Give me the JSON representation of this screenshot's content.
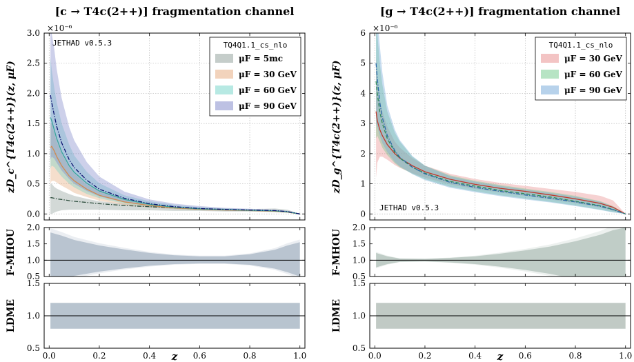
{
  "figure": {
    "xlabel": "z"
  },
  "chart_data": [
    {
      "type": "area",
      "panel": "left-main",
      "title": "[c → T4c(2++)] fragmentation channel",
      "ylabel": "zD_c^{T4c(2++)}(z, μF)",
      "scale_label": "×10⁻⁶",
      "watermark": "JETHAD v0.5.3",
      "legend_title": "TQ4Q1.1_cs_nlo",
      "legend_position": "top-right",
      "xlim": [
        0,
        1
      ],
      "ylim": [
        -0.1,
        3.0
      ],
      "x_ticks": [
        "0.0",
        "0.2",
        "0.4",
        "0.6",
        "0.8",
        "1.0"
      ],
      "y_ticks": [
        "0.0",
        "0.5",
        "1.0",
        "1.5",
        "2.0",
        "2.5",
        "3.0"
      ],
      "grid": true,
      "x": [
        0.005,
        0.01,
        0.02,
        0.03,
        0.05,
        0.08,
        0.1,
        0.15,
        0.2,
        0.3,
        0.4,
        0.5,
        0.6,
        0.7,
        0.8,
        0.9,
        0.95,
        1.0
      ],
      "series": [
        {
          "name": "μF = 5mc",
          "color": "#8c9c96",
          "central": [
            0.27,
            0.27,
            0.26,
            0.25,
            0.24,
            0.22,
            0.21,
            0.19,
            0.17,
            0.14,
            0.12,
            0.1,
            0.08,
            0.07,
            0.06,
            0.05,
            0.03,
            0.0
          ],
          "upper": [
            0.5,
            0.5,
            0.45,
            0.42,
            0.38,
            0.33,
            0.3,
            0.25,
            0.21,
            0.17,
            0.14,
            0.12,
            0.1,
            0.09,
            0.08,
            0.09,
            0.07,
            0.0
          ],
          "lower": [
            0.0,
            0.0,
            0.02,
            0.04,
            0.06,
            0.07,
            0.07,
            0.07,
            0.07,
            0.06,
            0.06,
            0.05,
            0.05,
            0.04,
            0.04,
            0.03,
            0.02,
            0.0
          ]
        },
        {
          "name": "μF = 30 GeV",
          "color": "#e6a77a",
          "central": [
            1.1,
            1.12,
            1.05,
            0.95,
            0.8,
            0.63,
            0.55,
            0.41,
            0.31,
            0.2,
            0.14,
            0.1,
            0.08,
            0.065,
            0.055,
            0.045,
            0.03,
            0.0
          ],
          "upper": [
            1.5,
            1.5,
            1.35,
            1.2,
            1.0,
            0.78,
            0.67,
            0.49,
            0.37,
            0.24,
            0.17,
            0.12,
            0.09,
            0.075,
            0.065,
            0.055,
            0.04,
            0.0
          ],
          "lower": [
            0.5,
            0.55,
            0.55,
            0.52,
            0.47,
            0.4,
            0.35,
            0.28,
            0.22,
            0.15,
            0.11,
            0.08,
            0.06,
            0.05,
            0.045,
            0.035,
            0.025,
            0.0
          ]
        },
        {
          "name": "μF = 60 GeV",
          "color": "#6fd3c8",
          "central": [
            1.6,
            1.55,
            1.4,
            1.25,
            1.03,
            0.8,
            0.69,
            0.51,
            0.38,
            0.24,
            0.16,
            0.11,
            0.085,
            0.07,
            0.06,
            0.05,
            0.035,
            0.0
          ],
          "upper": [
            2.6,
            2.4,
            2.1,
            1.85,
            1.5,
            1.15,
            0.97,
            0.7,
            0.51,
            0.31,
            0.21,
            0.15,
            0.11,
            0.09,
            0.075,
            0.065,
            0.045,
            0.0
          ],
          "lower": [
            0.75,
            0.8,
            0.78,
            0.72,
            0.62,
            0.5,
            0.44,
            0.33,
            0.26,
            0.17,
            0.12,
            0.085,
            0.065,
            0.055,
            0.045,
            0.04,
            0.03,
            0.0
          ]
        },
        {
          "name": "μF = 90 GeV",
          "color": "#7b84c8",
          "central": [
            1.97,
            1.85,
            1.65,
            1.45,
            1.18,
            0.9,
            0.77,
            0.56,
            0.41,
            0.26,
            0.17,
            0.12,
            0.09,
            0.075,
            0.065,
            0.055,
            0.04,
            0.0
          ],
          "upper": [
            3.0,
            3.0,
            2.75,
            2.4,
            1.92,
            1.44,
            1.22,
            0.86,
            0.62,
            0.37,
            0.24,
            0.17,
            0.13,
            0.1,
            0.085,
            0.07,
            0.05,
            0.0
          ],
          "lower": [
            0.9,
            0.95,
            0.92,
            0.85,
            0.72,
            0.58,
            0.5,
            0.38,
            0.29,
            0.19,
            0.13,
            0.095,
            0.07,
            0.06,
            0.05,
            0.04,
            0.03,
            0.0
          ]
        }
      ]
    },
    {
      "type": "area",
      "panel": "left-mhou",
      "ylabel": "F-MHOU",
      "ylim": [
        0.5,
        2.0
      ],
      "y_ticks": [
        "0.5",
        "1.0",
        "1.5",
        "2.0"
      ],
      "reference_line": 1.0,
      "x": [
        0.005,
        0.05,
        0.1,
        0.2,
        0.3,
        0.4,
        0.5,
        0.6,
        0.7,
        0.8,
        0.9,
        0.95,
        1.0
      ],
      "upper": [
        1.85,
        1.75,
        1.62,
        1.45,
        1.33,
        1.22,
        1.15,
        1.12,
        1.12,
        1.18,
        1.32,
        1.45,
        1.55
      ],
      "lower": [
        0.12,
        0.4,
        0.52,
        0.65,
        0.75,
        0.83,
        0.88,
        0.9,
        0.9,
        0.86,
        0.74,
        0.63,
        0.5
      ]
    },
    {
      "type": "area",
      "panel": "left-ldme",
      "ylabel": "LDME",
      "ylim": [
        0.5,
        1.5
      ],
      "y_ticks": [
        "0.5",
        "1.0",
        "1.5"
      ],
      "reference_line": 1.0,
      "x": [
        0.005,
        1.0
      ],
      "upper": [
        1.2,
        1.2
      ],
      "lower": [
        0.8,
        0.8
      ]
    },
    {
      "type": "area",
      "panel": "right-main",
      "title": "[g → T4c(2++)] fragmentation channel",
      "ylabel": "zD_g^{T4c(2++)}(z, μF)",
      "scale_label": "×10⁻⁶",
      "watermark": "JETHAD v0.5.3",
      "legend_title": "TQ4Q1.1_cs_nlo",
      "legend_position": "top-right",
      "xlim": [
        0,
        1
      ],
      "ylim": [
        -0.2,
        6.0
      ],
      "x_ticks": [
        "0.0",
        "0.2",
        "0.4",
        "0.6",
        "0.8",
        "1.0"
      ],
      "y_ticks": [
        "0",
        "1",
        "2",
        "3",
        "4",
        "5",
        "6"
      ],
      "grid": true,
      "x": [
        0.005,
        0.01,
        0.02,
        0.03,
        0.05,
        0.08,
        0.1,
        0.15,
        0.2,
        0.3,
        0.4,
        0.5,
        0.6,
        0.7,
        0.8,
        0.9,
        0.95,
        1.0
      ],
      "series": [
        {
          "name": "μF = 30 GeV",
          "color": "#e88a8a",
          "central": [
            3.4,
            3.1,
            2.8,
            2.6,
            2.3,
            2.0,
            1.85,
            1.6,
            1.4,
            1.15,
            0.98,
            0.85,
            0.75,
            0.63,
            0.5,
            0.35,
            0.22,
            0.0
          ],
          "upper": [
            5.2,
            4.6,
            3.8,
            3.4,
            2.9,
            2.4,
            2.2,
            1.85,
            1.6,
            1.33,
            1.16,
            1.03,
            0.93,
            0.83,
            0.73,
            0.6,
            0.45,
            0.0
          ],
          "lower": [
            1.2,
            1.7,
            1.9,
            1.9,
            1.8,
            1.62,
            1.53,
            1.35,
            1.2,
            0.98,
            0.83,
            0.71,
            0.6,
            0.48,
            0.36,
            0.21,
            0.1,
            0.0
          ]
        },
        {
          "name": "μF = 60 GeV",
          "color": "#6fc98a",
          "central": [
            4.4,
            4.0,
            3.4,
            3.0,
            2.5,
            2.05,
            1.85,
            1.55,
            1.35,
            1.08,
            0.92,
            0.78,
            0.67,
            0.56,
            0.42,
            0.27,
            0.15,
            0.0
          ],
          "upper": [
            6.5,
            6.0,
            5.0,
            4.3,
            3.4,
            2.7,
            2.4,
            1.9,
            1.6,
            1.28,
            1.1,
            0.96,
            0.84,
            0.73,
            0.6,
            0.42,
            0.26,
            0.0
          ],
          "lower": [
            2.5,
            2.6,
            2.4,
            2.2,
            1.95,
            1.68,
            1.55,
            1.33,
            1.15,
            0.9,
            0.75,
            0.62,
            0.51,
            0.4,
            0.28,
            0.14,
            0.06,
            0.0
          ]
        },
        {
          "name": "μF = 90 GeV",
          "color": "#6fa6d8",
          "central": [
            5.0,
            4.5,
            3.7,
            3.2,
            2.6,
            2.1,
            1.88,
            1.55,
            1.33,
            1.05,
            0.88,
            0.75,
            0.63,
            0.52,
            0.4,
            0.25,
            0.14,
            0.0
          ],
          "upper": [
            6.5,
            6.5,
            5.6,
            4.7,
            3.6,
            2.8,
            2.45,
            1.92,
            1.6,
            1.25,
            1.07,
            0.93,
            0.81,
            0.7,
            0.57,
            0.4,
            0.24,
            0.0
          ],
          "lower": [
            3.0,
            2.9,
            2.6,
            2.35,
            2.05,
            1.72,
            1.58,
            1.32,
            1.12,
            0.87,
            0.72,
            0.59,
            0.48,
            0.38,
            0.26,
            0.13,
            0.05,
            0.0
          ]
        }
      ]
    },
    {
      "type": "area",
      "panel": "right-mhou",
      "ylabel": "F-MHOU",
      "ylim": [
        0.5,
        2.0
      ],
      "y_ticks": [
        "0.5",
        "1.0",
        "1.5",
        "2.0"
      ],
      "reference_line": 1.0,
      "x": [
        0.005,
        0.05,
        0.1,
        0.2,
        0.3,
        0.4,
        0.5,
        0.6,
        0.7,
        0.8,
        0.9,
        0.95,
        1.0
      ],
      "upper": [
        1.22,
        1.12,
        1.05,
        1.04,
        1.07,
        1.12,
        1.2,
        1.3,
        1.42,
        1.58,
        1.78,
        1.92,
        2.0
      ],
      "lower": [
        0.78,
        0.88,
        0.95,
        0.96,
        0.93,
        0.88,
        0.8,
        0.7,
        0.58,
        0.42,
        0.22,
        0.08,
        0.0
      ]
    },
    {
      "type": "area",
      "panel": "right-ldme",
      "ylabel": "LDME",
      "ylim": [
        0.5,
        1.5
      ],
      "y_ticks": [
        "0.5",
        "1.0",
        "1.5"
      ],
      "reference_line": 1.0,
      "x": [
        0.005,
        1.0
      ],
      "upper": [
        1.2,
        1.2
      ],
      "lower": [
        0.8,
        0.8
      ]
    }
  ]
}
